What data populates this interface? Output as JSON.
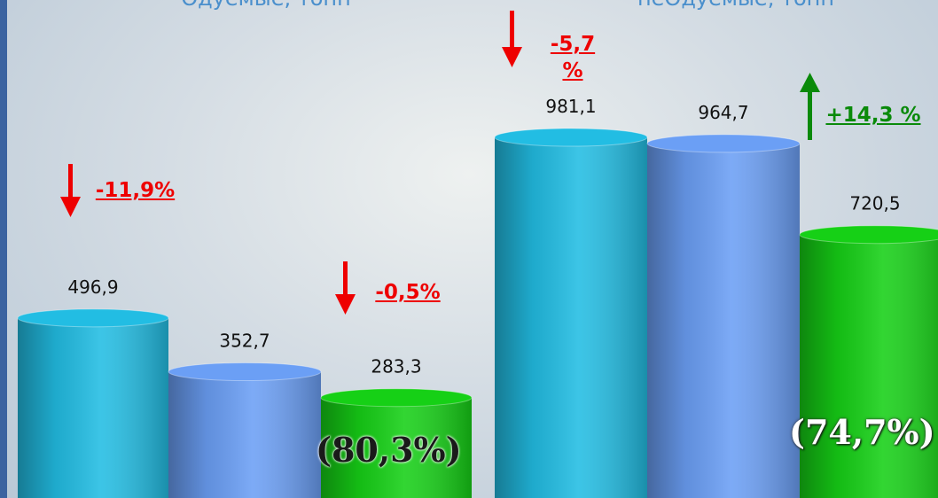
{
  "chart_data": [
    {
      "type": "bar",
      "title": "Одуемые, тонн",
      "values": [
        496.9,
        352.7,
        283.3
      ],
      "value_labels": [
        "496,9",
        "352,7",
        "283,3"
      ],
      "colors": [
        "#22bde3",
        "#6b9ff5",
        "#16d016"
      ],
      "annotations": [
        {
          "text": "-11,9%",
          "color": "#ee0000"
        },
        {
          "text": "-0,5%",
          "color": "#ee0000"
        },
        {
          "text": "(80,3%)",
          "color": "#1a1a1a"
        }
      ]
    },
    {
      "type": "bar",
      "title": "неОдуемые, тонн",
      "values": [
        981.1,
        964.7,
        720.5
      ],
      "value_labels": [
        "981,1",
        "964,7",
        "720,5"
      ],
      "colors": [
        "#22bde3",
        "#6b9ff5",
        "#16d016"
      ],
      "annotations": [
        {
          "text": "-5,7 %",
          "color": "#ee0000"
        },
        {
          "text": "+14,3 %",
          "color": "#0a8a0a"
        },
        {
          "text": "(74,7%)",
          "color": "#ffffff"
        }
      ]
    }
  ]
}
